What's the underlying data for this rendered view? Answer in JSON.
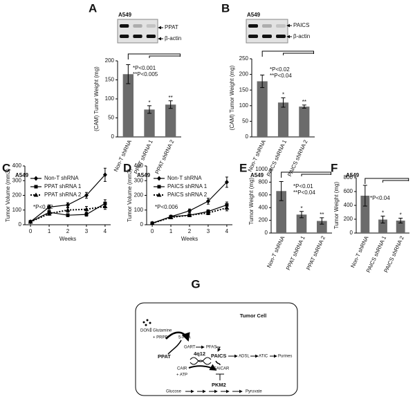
{
  "chart_data": [
    {
      "type": "bar",
      "label": "A",
      "cell_line": "A549",
      "blot": [
        "PPAT",
        "β-actin"
      ],
      "ylabel": "(CAM) Tumor Weight (mg)",
      "categories": [
        "Non-T shRNA",
        "PPAT shRNA 1",
        "PPAT shRNA 2"
      ],
      "values": [
        165,
        72,
        85
      ],
      "errors": [
        25,
        10,
        10
      ],
      "markers": [
        null,
        "*",
        "**"
      ],
      "color": "#6b6b6b",
      "ylim": [
        0,
        200
      ],
      "yticks": [
        0,
        50,
        100,
        150,
        200
      ],
      "annotations": [
        "*P<0.001",
        "**P<0.005"
      ]
    },
    {
      "type": "bar",
      "label": "B",
      "cell_line": "A549",
      "blot": [
        "PAICS",
        "β-actin"
      ],
      "ylabel": "(CAM) Tumor Weight (mg)",
      "categories": [
        "Non-T shRNA",
        "PAICS shRNA 1",
        "PAICS shRNA 2"
      ],
      "values": [
        178,
        110,
        97
      ],
      "errors": [
        20,
        15,
        5
      ],
      "markers": [
        null,
        "*",
        "**"
      ],
      "color": "#6b6b6b",
      "ylim": [
        0,
        250
      ],
      "yticks": [
        0,
        50,
        100,
        150,
        200,
        250
      ],
      "annotations": [
        "*P<0.02",
        "**P<0.04"
      ]
    },
    {
      "type": "line",
      "label": "C",
      "cell_line": "A549",
      "ylabel": "Tumor Volume (mm3)",
      "xlabel": "Weeks",
      "x": [
        0,
        1,
        2,
        3,
        4
      ],
      "xlim": [
        -0.3,
        4.3
      ],
      "xticks": [
        0,
        1,
        2,
        3,
        4
      ],
      "ylim": [
        0,
        400
      ],
      "yticks": [
        0,
        100,
        200,
        300,
        400
      ],
      "series": [
        {
          "name": "Non-T shRNA",
          "color": "#000000",
          "marker": "diamond",
          "style": "solid",
          "values": [
            20,
            120,
            135,
            200,
            340
          ],
          "errors": [
            3,
            15,
            15,
            20,
            45
          ]
        },
        {
          "name": "PPAT shRNA 1",
          "color": "#000000",
          "marker": "square",
          "style": "solid",
          "values": [
            20,
            85,
            65,
            70,
            145
          ],
          "errors": [
            3,
            12,
            10,
            12,
            25
          ]
        },
        {
          "name": "PPAT shRNA 2",
          "color": "#000000",
          "marker": "triangle",
          "style": "dotted",
          "values": [
            20,
            75,
            100,
            105,
            125
          ],
          "errors": [
            3,
            10,
            15,
            20,
            20
          ]
        }
      ],
      "annotations": [
        "*P<0.02"
      ]
    },
    {
      "type": "line",
      "label": "D",
      "cell_line": "A549",
      "ylabel": "Tumor Volume (mm3)",
      "xlabel": "Weeks",
      "x": [
        0,
        1,
        2,
        3,
        4
      ],
      "xlim": [
        -0.3,
        4.3
      ],
      "xticks": [
        0,
        1,
        2,
        3,
        4
      ],
      "ylim": [
        0,
        400
      ],
      "yticks": [
        0,
        100,
        200,
        300,
        400
      ],
      "series": [
        {
          "name": "Non-T shRNA",
          "color": "#000000",
          "marker": "diamond",
          "style": "solid",
          "values": [
            10,
            55,
            95,
            160,
            290
          ],
          "errors": [
            2,
            8,
            12,
            20,
            35
          ]
        },
        {
          "name": "PAICS shRNA 1",
          "color": "#000000",
          "marker": "square",
          "style": "solid",
          "values": [
            10,
            55,
            65,
            90,
            135
          ],
          "errors": [
            2,
            8,
            10,
            12,
            20
          ]
        },
        {
          "name": "PAICS shRNA 2",
          "color": "#000000",
          "marker": "triangle",
          "style": "dotted",
          "values": [
            10,
            50,
            65,
            80,
            115
          ],
          "errors": [
            2,
            8,
            10,
            12,
            20
          ]
        }
      ],
      "annotations": [
        "*P<0.006"
      ]
    },
    {
      "type": "bar",
      "label": "E",
      "cell_line": "A549",
      "ylabel": "Tumor Weight (mg)",
      "categories": [
        "Non-T shRNA",
        "PPAT shRNA 1",
        "PPAT shRNA 2"
      ],
      "values": [
        660,
        290,
        190
      ],
      "errors": [
        150,
        50,
        50
      ],
      "markers": [
        null,
        "*",
        "**"
      ],
      "color": "#6b6b6b",
      "ylim": [
        0,
        1000
      ],
      "yticks": [
        0,
        200,
        400,
        600,
        800,
        1000
      ],
      "annotations": [
        "*P<0.01",
        "**P<0.04"
      ]
    },
    {
      "type": "bar",
      "label": "F",
      "cell_line": "A549",
      "ylabel": "Tumor Weight (mg)",
      "categories": [
        "Non-T shRNA",
        "PAICS shRNA 1",
        "PAICS shRNA 2"
      ],
      "values": [
        540,
        195,
        180
      ],
      "errors": [
        150,
        50,
        35
      ],
      "markers": [
        null,
        "*",
        "*"
      ],
      "color": "#6b6b6b",
      "ylim": [
        0,
        800
      ],
      "yticks": [
        0,
        200,
        400,
        600,
        800
      ],
      "annotations": [
        "*P<0.04"
      ]
    }
  ],
  "diagram": {
    "label": "G",
    "title": "Tumor Cell",
    "nodes": [
      "DON",
      "Glutamine",
      "+ PRPP",
      "5-PRA",
      "GART",
      "PFAS",
      "PPAT",
      "4q12",
      "PAICS",
      "ADSL",
      "ATIC",
      "Purines",
      "CAIR",
      "+ ATP",
      "SAICAR",
      "PKM2",
      "Glucose",
      "Pyruvate"
    ]
  }
}
